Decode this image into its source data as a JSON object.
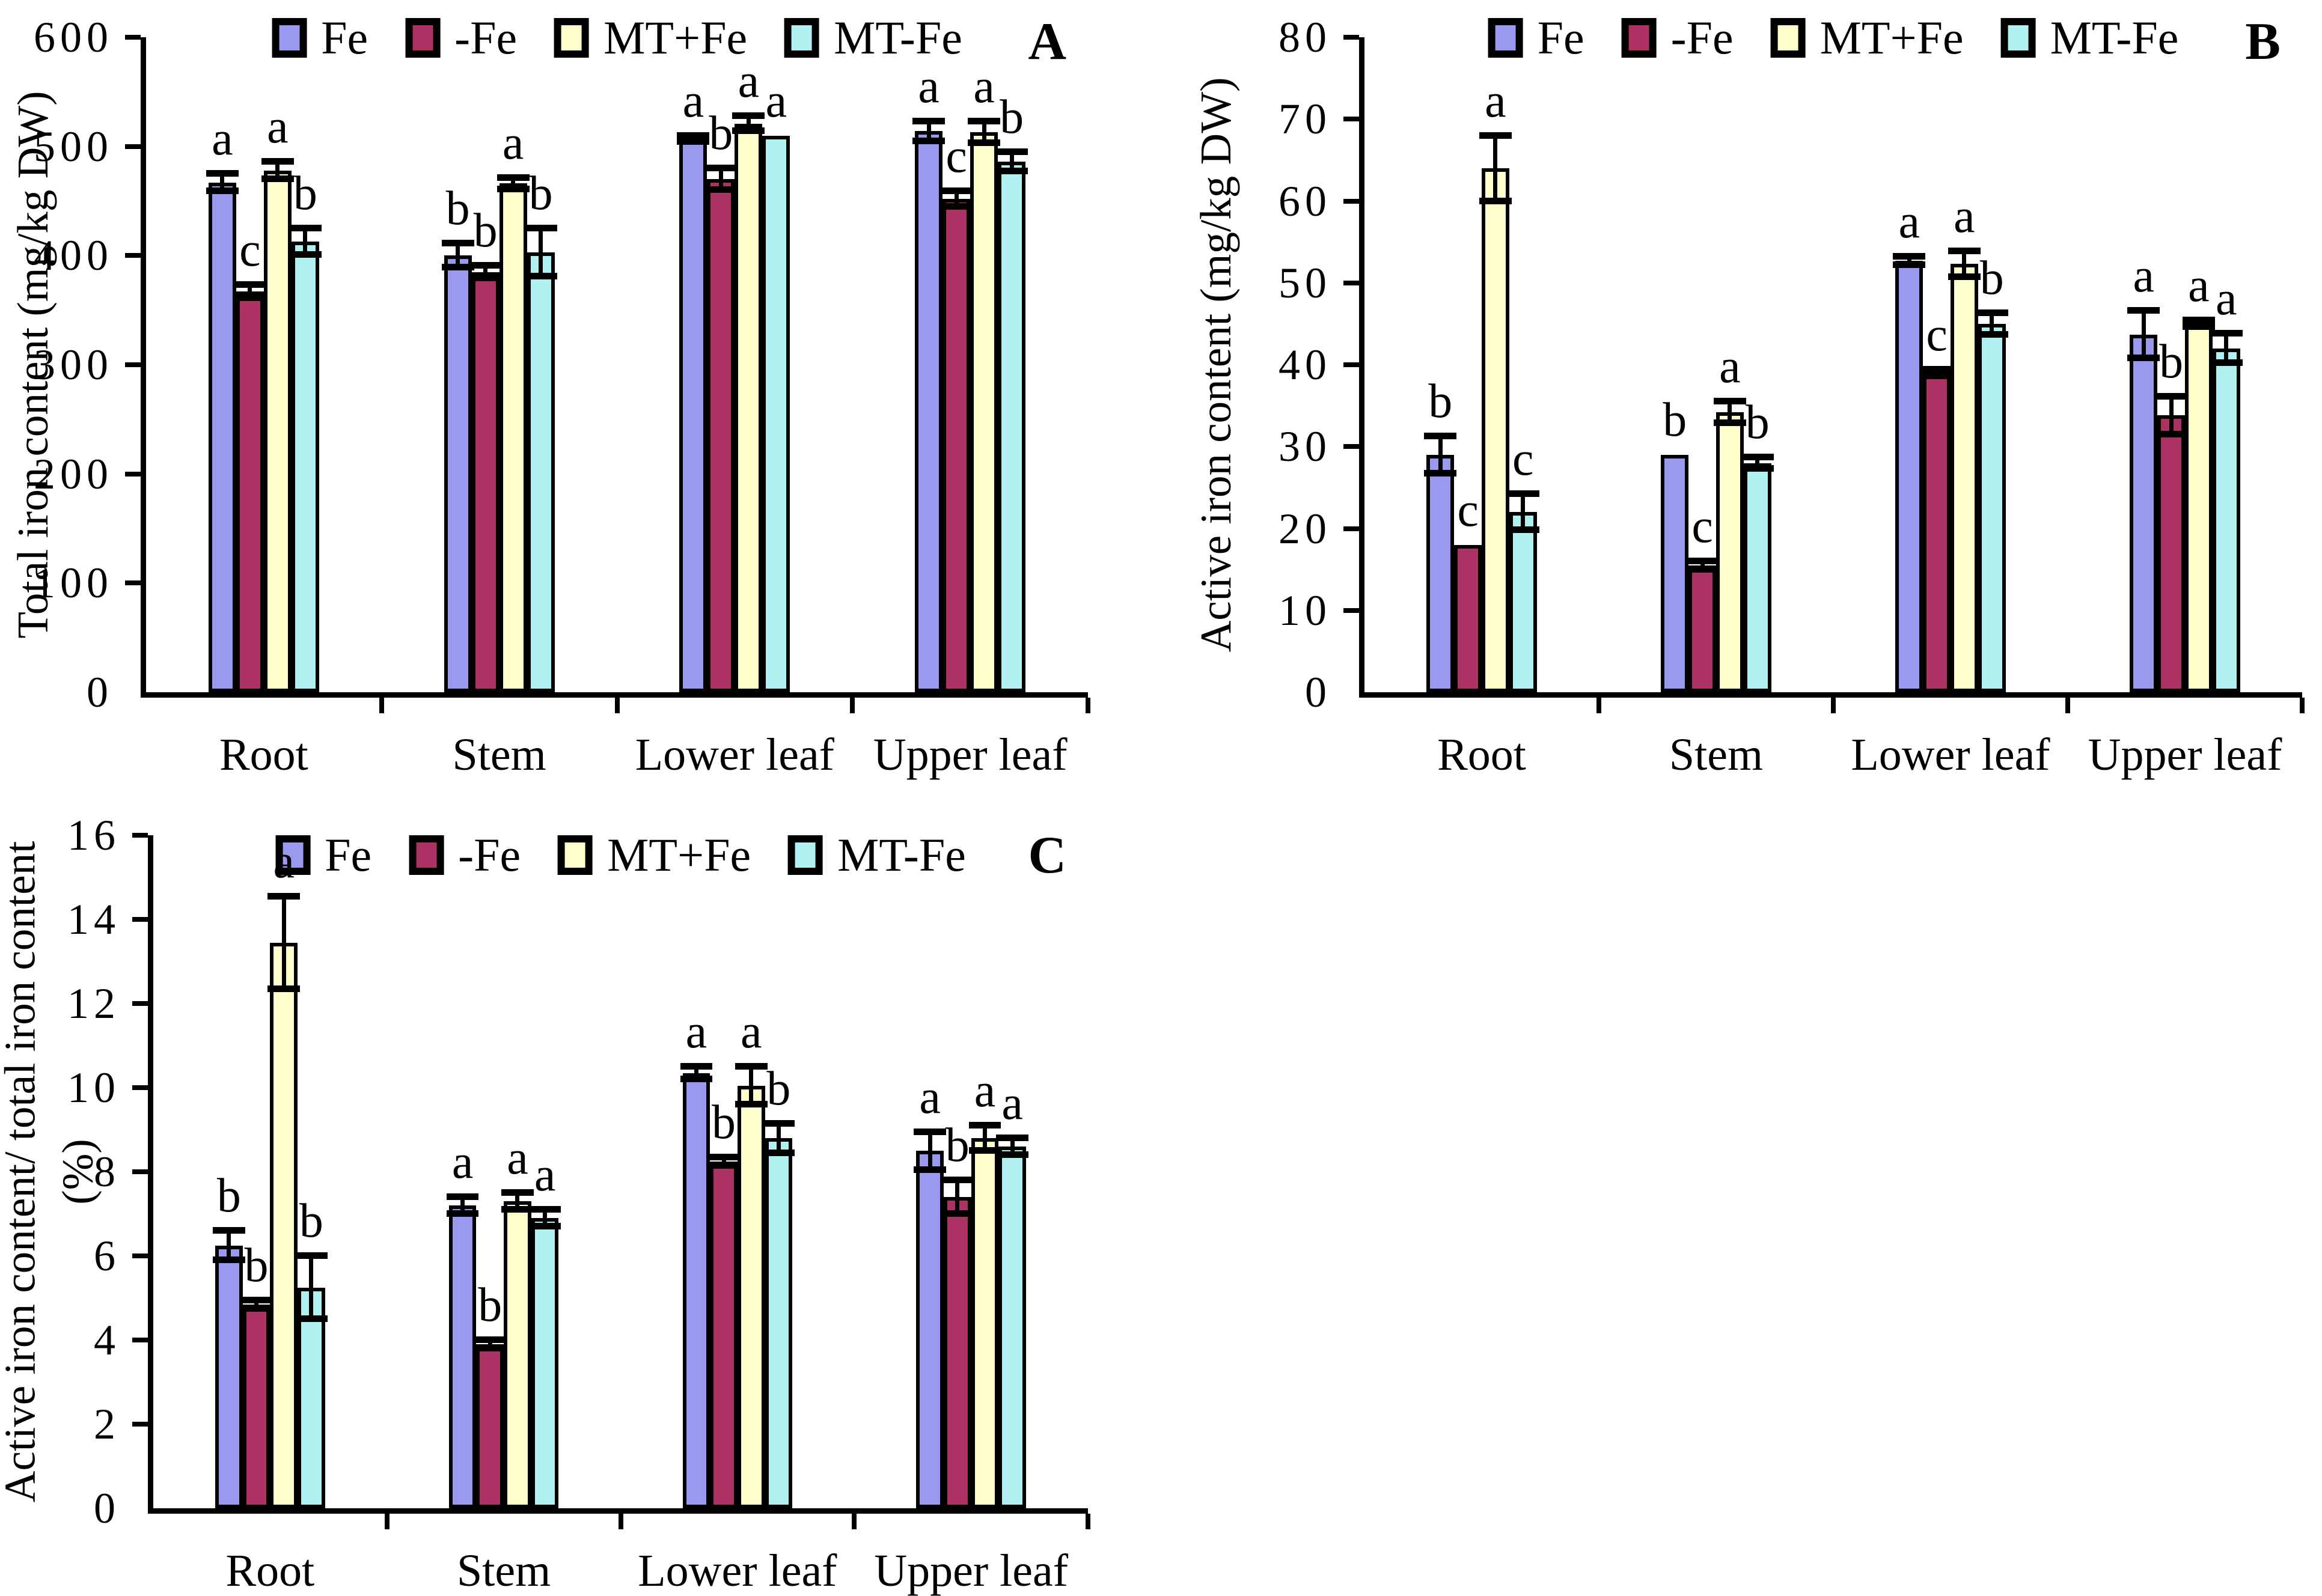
{
  "figure": {
    "description_visible_text_only": "Three-panel bar chart figure",
    "panel_labels": [
      "A",
      "B",
      "C"
    ]
  },
  "chart_data": [
    {
      "type": "bar",
      "panel_label": "A",
      "title": "",
      "xlabel": "",
      "ylabel": "Total iron content (mg/kg DW)",
      "ylim": [
        0,
        600
      ],
      "ytick_step": 100,
      "yticks": [
        0,
        100,
        200,
        300,
        400,
        500,
        600
      ],
      "grid": false,
      "legend_position": "top",
      "categories": [
        "Root",
        "Stem",
        "Lower leaf",
        "Upper leaf"
      ],
      "series": [
        {
          "name": "Fe",
          "color": "#9999F0",
          "values": [
            467,
            400,
            507,
            514
          ],
          "errors": [
            8,
            11,
            3,
            9
          ],
          "letters": [
            "a",
            "b",
            "a",
            "a"
          ]
        },
        {
          "name": "-Fe",
          "color": "#AC3264",
          "values": [
            367,
            385,
            470,
            452
          ],
          "errors": [
            6,
            6,
            10,
            7
          ],
          "letters": [
            "c",
            "b",
            "b",
            "c"
          ]
        },
        {
          "name": "MT+Fe",
          "color": "#FFFFCC",
          "values": [
            478,
            466,
            521,
            513
          ],
          "errors": [
            8,
            5,
            7,
            10
          ],
          "letters": [
            "a",
            "a",
            "a",
            "a"
          ]
        },
        {
          "name": "MT-Fe",
          "color": "#B0F0F0",
          "values": [
            413,
            403,
            510,
            486
          ],
          "errors": [
            12,
            22,
            0,
            9
          ],
          "letters": [
            "b",
            "b",
            "a",
            "b"
          ]
        }
      ]
    },
    {
      "type": "bar",
      "panel_label": "B",
      "title": "",
      "xlabel": "",
      "ylabel": "Active iron content (mg/kg DW)",
      "ylim": [
        0,
        80
      ],
      "ytick_step": 10,
      "yticks": [
        0,
        10,
        20,
        30,
        40,
        50,
        60,
        70,
        80
      ],
      "grid": false,
      "legend_position": "top",
      "categories": [
        "Root",
        "Stem",
        "Lower leaf",
        "Upper leaf"
      ],
      "series": [
        {
          "name": "Fe",
          "color": "#9999F0",
          "values": [
            29,
            29,
            52.7,
            43.7
          ],
          "errors": [
            2.3,
            0,
            0.5,
            2.9
          ],
          "letters": [
            "b",
            "b",
            "a",
            "a"
          ]
        },
        {
          "name": "-Fe",
          "color": "#AC3264",
          "values": [
            18,
            15.5,
            39,
            33.8
          ],
          "errors": [
            0,
            0.5,
            0.4,
            2.3
          ],
          "letters": [
            "c",
            "c",
            "c",
            "b"
          ]
        },
        {
          "name": "MT+Fe",
          "color": "#FFFFCC",
          "values": [
            64,
            34.2,
            52.3,
            45
          ],
          "errors": [
            4,
            1.3,
            1.6,
            0.4
          ],
          "letters": [
            "a",
            "a",
            "a",
            "a"
          ]
        },
        {
          "name": "MT-Fe",
          "color": "#B0F0F0",
          "values": [
            22,
            28,
            45,
            42
          ],
          "errors": [
            2.2,
            0.7,
            1.3,
            1.8
          ],
          "letters": [
            "c",
            "b",
            "b",
            "a"
          ]
        }
      ]
    },
    {
      "type": "bar",
      "panel_label": "C",
      "title": "",
      "xlabel": "",
      "ylabel": "Active iron content/ total iron content",
      "ylabel_line2": "(%)",
      "ylim": [
        0,
        16
      ],
      "ytick_step": 2,
      "yticks": [
        0,
        2,
        4,
        6,
        8,
        10,
        12,
        14,
        16
      ],
      "grid": false,
      "legend_position": "top",
      "categories": [
        "Root",
        "Stem",
        "Lower leaf",
        "Upper leaf"
      ],
      "series": [
        {
          "name": "Fe",
          "color": "#9999F0",
          "values": [
            6.25,
            7.2,
            10.35,
            8.5
          ],
          "errors": [
            0.35,
            0.2,
            0.15,
            0.45
          ],
          "letters": [
            "b",
            "a",
            "a",
            "a"
          ]
        },
        {
          "name": "-Fe",
          "color": "#AC3264",
          "values": [
            4.85,
            3.9,
            8.25,
            7.4
          ],
          "errors": [
            0.1,
            0.1,
            0.1,
            0.4
          ],
          "letters": [
            "b",
            "b",
            "b",
            "b"
          ]
        },
        {
          "name": "MT+Fe",
          "color": "#FFFFCC",
          "values": [
            13.45,
            7.3,
            10.05,
            8.8
          ],
          "errors": [
            1.1,
            0.2,
            0.45,
            0.3
          ],
          "letters": [
            "a",
            "a",
            "a",
            "a"
          ]
        },
        {
          "name": "MT-Fe",
          "color": "#B0F0F0",
          "values": [
            5.25,
            6.9,
            8.8,
            8.6
          ],
          "errors": [
            0.75,
            0.2,
            0.35,
            0.2
          ],
          "letters": [
            "b",
            "a",
            "b",
            "a"
          ]
        }
      ]
    }
  ]
}
